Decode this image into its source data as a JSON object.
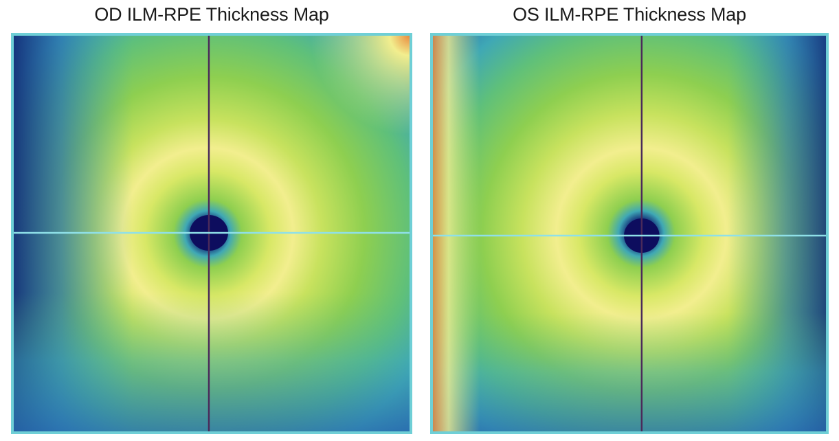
{
  "od": {
    "title": "OD ILM-RPE Thickness Map"
  },
  "os": {
    "title": "OS ILM-RPE Thickness Map"
  },
  "colors": {
    "thick_peak": "#f2ee8e",
    "thick": "#d8e866",
    "mid_high": "#a8da5a",
    "mid": "#8ecf50",
    "mid_low": "#5fc07a",
    "low": "#3fa8b5",
    "thin": "#2a6fb0",
    "thinnest": "#14317a",
    "very_thick": "#e98b3e",
    "frame": "#6fcfd6",
    "crosshair_vertical": "#4a2a5a",
    "crosshair_horizontal": "#8fe0e8",
    "fovea": "#0d0d5e"
  }
}
